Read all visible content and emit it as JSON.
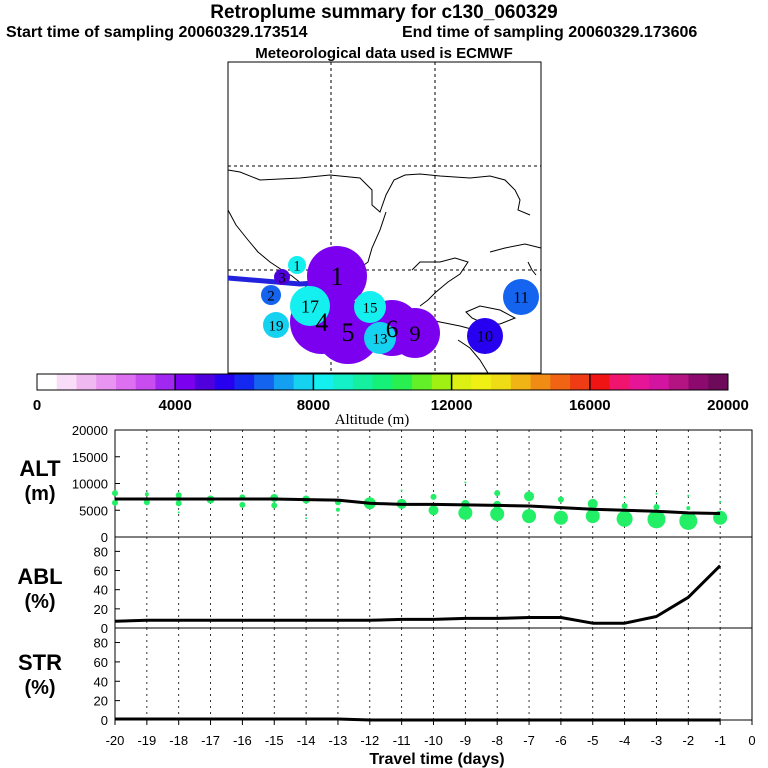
{
  "header": {
    "title": "Retroplume summary for c130_060329",
    "start_label": "Start time of sampling 20060329.173514",
    "end_label": "End time of sampling 20060329.173606",
    "met_label": "Meteorological data used is ECMWF"
  },
  "colorbar": {
    "colors": [
      "#ffffff",
      "#f8dcf8",
      "#f0b8f0",
      "#e894f0",
      "#dc70f0",
      "#c84cf0",
      "#a028f0",
      "#7c00f0",
      "#5000dc",
      "#2800f0",
      "#1428f0",
      "#1464f0",
      "#14a0f0",
      "#14d2f0",
      "#14f0f0",
      "#14f0c8",
      "#14f0a0",
      "#14f078",
      "#28f050",
      "#64f028",
      "#a0f014",
      "#dcf014",
      "#f0f014",
      "#f0dc14",
      "#f0b414",
      "#f08c14",
      "#f06414",
      "#f03c14",
      "#f01414",
      "#f0146e",
      "#e61496",
      "#d214a0",
      "#b41482",
      "#8c0a6e",
      "#6e0a5a"
    ],
    "tick_labels": [
      "0",
      "4000",
      "8000",
      "12000",
      "16000",
      "20000"
    ],
    "label": "Altitude (m)"
  },
  "map": {
    "plumes": [
      {
        "label": "1",
        "value": 1,
        "color": "#14f0f0"
      },
      {
        "label": "1",
        "value": 1,
        "color": "#7c00f0"
      },
      {
        "label": "2",
        "value": 2,
        "color": "#1464f0"
      },
      {
        "label": "3",
        "value": 3,
        "color": "#5000dc"
      },
      {
        "label": "4",
        "value": 4,
        "color": "#7c00f0"
      },
      {
        "label": "5",
        "value": 5,
        "color": "#7c00f0"
      },
      {
        "label": "6",
        "value": 6,
        "color": "#7c00f0"
      },
      {
        "label": "9",
        "value": 9,
        "color": "#7c00f0"
      },
      {
        "label": "10",
        "value": 10,
        "color": "#2800f0"
      },
      {
        "label": "11",
        "value": 11,
        "color": "#1464f0"
      },
      {
        "label": "13",
        "value": 13,
        "color": "#14d2f0"
      },
      {
        "label": "15",
        "value": 15,
        "color": "#14f0f0"
      },
      {
        "label": "17",
        "value": 17,
        "color": "#14f0f0"
      },
      {
        "label": "19",
        "value": 19,
        "color": "#14d2f0"
      }
    ]
  },
  "panels": {
    "alt_label": "ALT",
    "alt_unit": "(m)",
    "abl_label": "ABL",
    "abl_unit": "(%)",
    "str_label": "STR",
    "str_unit": "(%)",
    "xlabel": "Travel time (days)"
  },
  "chart_data": [
    {
      "type": "line",
      "panel": "ALT",
      "ylabel": "ALT (m)",
      "ylim": [
        0,
        20000
      ],
      "yticks": [
        0,
        5000,
        10000,
        15000,
        20000
      ],
      "x": [
        -20,
        -19,
        -18,
        -17,
        -16,
        -15,
        -14,
        -13,
        -12,
        -11,
        -10,
        -9,
        -8,
        -7,
        -6,
        -5,
        -4,
        -3,
        -2,
        -1
      ],
      "series": [
        {
          "name": "median altitude",
          "values": [
            7100,
            7100,
            7100,
            7100,
            7100,
            7100,
            7000,
            6900,
            6300,
            6100,
            6100,
            6000,
            5900,
            5800,
            5500,
            5200,
            5000,
            4800,
            4500,
            4400
          ]
        }
      ],
      "scatter": {
        "name": "particle altitude distribution",
        "color": "#22ee66",
        "points": [
          [
            -20,
            8200,
            3
          ],
          [
            -20,
            6400,
            3
          ],
          [
            -19,
            8000,
            2
          ],
          [
            -19,
            6500,
            3
          ],
          [
            -18,
            7800,
            3
          ],
          [
            -18,
            6300,
            3
          ],
          [
            -18,
            4600,
            1
          ],
          [
            -17,
            7000,
            4
          ],
          [
            -16,
            7400,
            3
          ],
          [
            -16,
            6000,
            3
          ],
          [
            -15,
            7300,
            4
          ],
          [
            -15,
            5900,
            3
          ],
          [
            -14,
            7000,
            4
          ],
          [
            -14,
            3500,
            1
          ],
          [
            -13,
            6500,
            3
          ],
          [
            -13,
            5100,
            2
          ],
          [
            -12,
            6300,
            6
          ],
          [
            -11,
            8700,
            1
          ],
          [
            -11,
            6200,
            5
          ],
          [
            -10,
            7500,
            3
          ],
          [
            -10,
            5000,
            5
          ],
          [
            -9,
            10200,
            1
          ],
          [
            -9,
            6200,
            4
          ],
          [
            -9,
            4500,
            7
          ],
          [
            -8,
            8200,
            3
          ],
          [
            -8,
            6000,
            4
          ],
          [
            -8,
            4300,
            7
          ],
          [
            -7,
            7600,
            5
          ],
          [
            -7,
            3900,
            7
          ],
          [
            -6,
            7000,
            3
          ],
          [
            -6,
            3600,
            7
          ],
          [
            -5,
            6200,
            5
          ],
          [
            -5,
            3900,
            7
          ],
          [
            -4,
            7400,
            1
          ],
          [
            -4,
            5800,
            3
          ],
          [
            -4,
            3400,
            8
          ],
          [
            -3,
            8100,
            1
          ],
          [
            -3,
            5600,
            3
          ],
          [
            -3,
            3300,
            9
          ],
          [
            -2,
            7700,
            1
          ],
          [
            -2,
            5400,
            2
          ],
          [
            -2,
            3000,
            9
          ],
          [
            -1,
            6600,
            1
          ],
          [
            -1,
            3600,
            7
          ]
        ]
      }
    },
    {
      "type": "line",
      "panel": "ABL",
      "ylabel": "ABL (%)",
      "ylim": [
        0,
        95
      ],
      "yticks": [
        0,
        20,
        40,
        60,
        80
      ],
      "x": [
        -20,
        -19,
        -18,
        -17,
        -16,
        -15,
        -14,
        -13,
        -12,
        -11,
        -10,
        -9,
        -8,
        -7,
        -6,
        -5,
        -4,
        -3,
        -2,
        -1
      ],
      "series": [
        {
          "name": "ABL fraction",
          "values": [
            7,
            8,
            8,
            8,
            8,
            8,
            8,
            8,
            8,
            9,
            9,
            10,
            10,
            11,
            11,
            5,
            5,
            12,
            32,
            65
          ]
        }
      ]
    },
    {
      "type": "line",
      "panel": "STR",
      "ylabel": "STR (%)",
      "ylim": [
        0,
        95
      ],
      "yticks": [
        0,
        20,
        40,
        60,
        80
      ],
      "x": [
        -20,
        -19,
        -18,
        -17,
        -16,
        -15,
        -14,
        -13,
        -12,
        -11,
        -10,
        -9,
        -8,
        -7,
        -6,
        -5,
        -4,
        -3,
        -2,
        -1
      ],
      "series": [
        {
          "name": "stratospheric fraction",
          "values": [
            1,
            1,
            1,
            1,
            1,
            1,
            1,
            1,
            0,
            0,
            0,
            0,
            0,
            0,
            0,
            0,
            0,
            0,
            0,
            0
          ]
        }
      ]
    }
  ],
  "x_axis": {
    "range": [
      -20,
      0
    ],
    "tick_labels": [
      "-20",
      "-19",
      "-18",
      "-17",
      "-16",
      "-15",
      "-14",
      "-13",
      "-12",
      "-11",
      "-10",
      "-9",
      "-8",
      "-7",
      "-6",
      "-5",
      "-4",
      "-3",
      "-2",
      "-1",
      "0"
    ]
  }
}
